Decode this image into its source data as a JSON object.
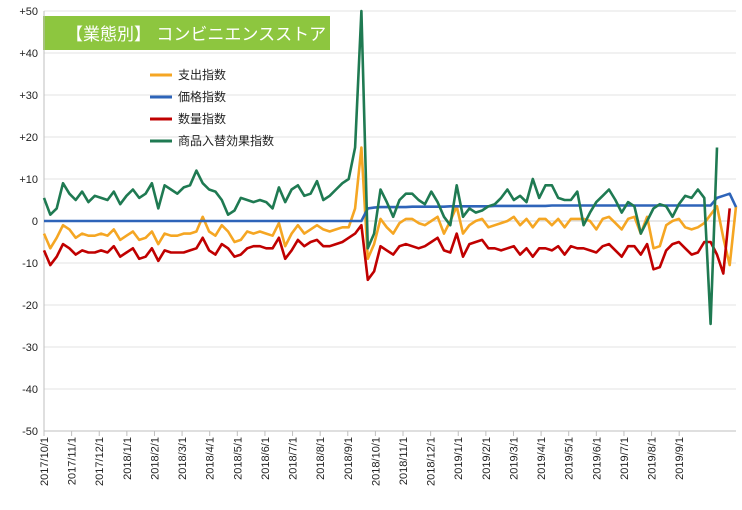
{
  "title": "【業態別】 コンビニエンスストア",
  "colors": {
    "title_bg": "#8dc63f",
    "spend": "#f5a623",
    "price": "#2e64b9",
    "quantity": "#c00000",
    "mix": "#1f7a52"
  },
  "chart_data": {
    "type": "line",
    "title": "【業態別】 コンビニエンスストア",
    "ylim": [
      -50,
      50
    ],
    "y_ticks": [
      50,
      40,
      30,
      20,
      10,
      0,
      -10,
      -20,
      -30,
      -40,
      -50
    ],
    "y_tick_labels": [
      "+50",
      "+40",
      "+30",
      "+20",
      "+10",
      "0",
      "-10",
      "-20",
      "-30",
      "-40",
      "-50"
    ],
    "x_tick_labels": [
      "2017/10/1",
      "2017/11/1",
      "2017/12/1",
      "2018/1/1",
      "2018/2/1",
      "2018/3/1",
      "2018/4/1",
      "2018/5/1",
      "2018/6/1",
      "2018/7/1",
      "2018/8/1",
      "2018/9/1",
      "2018/10/1",
      "2018/11/1",
      "2018/12/1",
      "2019/1/1",
      "2019/2/1",
      "2019/3/1",
      "2019/4/1",
      "2019/5/1",
      "2019/6/1",
      "2019/7/1",
      "2019/8/1",
      "2019/9/1"
    ],
    "weeks_per_month": 4.35,
    "grid": "horizontal",
    "legend_position": "top-left",
    "series": [
      {
        "name": "支出指数",
        "color": "#f5a623",
        "values": [
          -3,
          -6.5,
          -4,
          -1,
          -2,
          -4,
          -3,
          -3.5,
          -3.5,
          -3,
          -3.5,
          -2,
          -4.5,
          -3.5,
          -2.5,
          -4.5,
          -4,
          -2.5,
          -5.5,
          -3,
          -3.5,
          -3.5,
          -3,
          -3,
          -2.5,
          1,
          -2.5,
          -3.5,
          -1,
          -2.5,
          -5,
          -4.5,
          -2.5,
          -3,
          -2.5,
          -3,
          -3.5,
          -0.5,
          -6,
          -3,
          -1,
          -3,
          -2,
          -1,
          -2,
          -2.5,
          -2,
          -1.5,
          -1.5,
          3,
          17.5,
          -9,
          -5.5,
          0.5,
          -1.5,
          -3,
          -0.5,
          0.5,
          0.5,
          -0.5,
          -1,
          0,
          1,
          -3,
          0,
          3.5,
          -3,
          -1,
          0,
          0.5,
          -1.5,
          -1,
          -0.5,
          0,
          1,
          -1,
          0.5,
          -1.5,
          0.5,
          0.5,
          -1,
          0.5,
          -1.5,
          0.5,
          0.5,
          0.5,
          0,
          -2,
          0.5,
          1,
          -0.5,
          -2,
          0.5,
          1,
          -3,
          1,
          -6.5,
          -6,
          -1,
          0,
          0.5,
          -1.5,
          -2,
          -1.5,
          -0.5,
          1.5,
          3.5,
          -4,
          -10.5,
          3.5
        ],
        "values_note": "",
        "unit": ""
      },
      {
        "name": "価格指数",
        "color": "#2e64b9",
        "values": [
          0,
          0,
          0,
          0,
          0,
          0,
          0,
          0,
          0,
          0,
          0,
          0,
          0,
          0,
          0,
          0,
          0,
          0,
          0,
          0,
          0,
          0,
          0,
          0,
          0,
          0,
          0,
          0,
          0,
          0,
          0,
          0,
          0,
          0,
          0,
          0,
          0,
          0,
          0,
          0,
          0,
          0,
          0,
          0,
          0,
          0,
          0,
          0,
          0,
          0,
          0,
          3,
          3.2,
          3.3,
          3.3,
          3.3,
          3.3,
          3.3,
          3.4,
          3.4,
          3.4,
          3.4,
          3.4,
          3.4,
          3.5,
          3.5,
          3.5,
          3.5,
          3.5,
          3.5,
          3.5,
          3.6,
          3.6,
          3.6,
          3.6,
          3.6,
          3.6,
          3.6,
          3.6,
          3.6,
          3.7,
          3.7,
          3.7,
          3.7,
          3.7,
          3.7,
          3.7,
          3.7,
          3.7,
          3.7,
          3.7,
          3.7,
          3.7,
          3.7,
          3.7,
          3.7,
          3.7,
          3.7,
          3.7,
          3.7,
          3.7,
          3.7,
          3.7,
          3.7,
          3.7,
          3.7,
          5.5,
          6,
          6.5,
          3.3
        ],
        "unit": ""
      },
      {
        "name": "数量指数",
        "color": "#c00000",
        "values": [
          -7,
          -10.5,
          -8.5,
          -5.5,
          -6.5,
          -8,
          -7,
          -7.5,
          -7.5,
          -7,
          -7.5,
          -6,
          -8.5,
          -7.5,
          -6.5,
          -9,
          -8.5,
          -6.5,
          -9.5,
          -7,
          -7.5,
          -7.5,
          -7.5,
          -7,
          -6.5,
          -4,
          -7,
          -8,
          -5.5,
          -6.5,
          -8.5,
          -8,
          -6.5,
          -6,
          -6,
          -6.5,
          -6.5,
          -4,
          -9,
          -7,
          -4.5,
          -6,
          -5,
          -4.5,
          -6,
          -6,
          -5.5,
          -5,
          -4,
          -3,
          -1,
          -14,
          -12,
          -6,
          -7,
          -8,
          -6,
          -5.5,
          -6,
          -6.5,
          -6,
          -5,
          -4,
          -7,
          -7.5,
          -3,
          -8.5,
          -5.5,
          -5,
          -4.5,
          -6.5,
          -6.5,
          -7,
          -6.5,
          -6,
          -8,
          -6.5,
          -8.5,
          -6.5,
          -6.5,
          -7,
          -6,
          -8,
          -6,
          -6.5,
          -6.5,
          -7,
          -7.5,
          -6,
          -5.5,
          -7,
          -8.5,
          -6,
          -6,
          -8,
          -5.5,
          -11.5,
          -11,
          -7,
          -5.5,
          -5,
          -6.5,
          -8,
          -7.5,
          -5,
          -5,
          -8,
          -12.5,
          3
        ],
        "unit": ""
      },
      {
        "name": "商品入替効果指数",
        "color": "#1f7a52",
        "values": [
          5.5,
          1.5,
          3,
          9,
          6.5,
          5,
          7,
          4.5,
          6,
          5.5,
          5,
          7,
          4,
          6,
          7.5,
          5.5,
          6.5,
          9,
          3,
          8.5,
          7.5,
          6.5,
          8,
          8.5,
          12,
          9,
          7.5,
          7,
          5,
          1.5,
          2.5,
          5.5,
          5,
          4.5,
          5,
          4.5,
          3,
          8,
          4.5,
          7.5,
          8.5,
          6,
          6.5,
          9.5,
          5,
          6,
          7.5,
          9,
          10,
          17.5,
          50,
          -6.5,
          -3,
          7.5,
          4.5,
          1,
          5,
          6.5,
          6.5,
          5,
          4,
          7,
          4.5,
          1,
          -1,
          8.5,
          1,
          3,
          2,
          2.5,
          3.5,
          4,
          5.5,
          7.5,
          5,
          6,
          4.5,
          10,
          5.5,
          8.5,
          8.5,
          5.5,
          5,
          5,
          7,
          -1,
          2,
          4.5,
          6,
          7.5,
          5,
          2,
          4.5,
          3.5,
          -3,
          0,
          3,
          4,
          3.5,
          1,
          4,
          6,
          5.5,
          7.5,
          5.5,
          -24.5,
          17.5
        ],
        "unit": ""
      }
    ]
  }
}
